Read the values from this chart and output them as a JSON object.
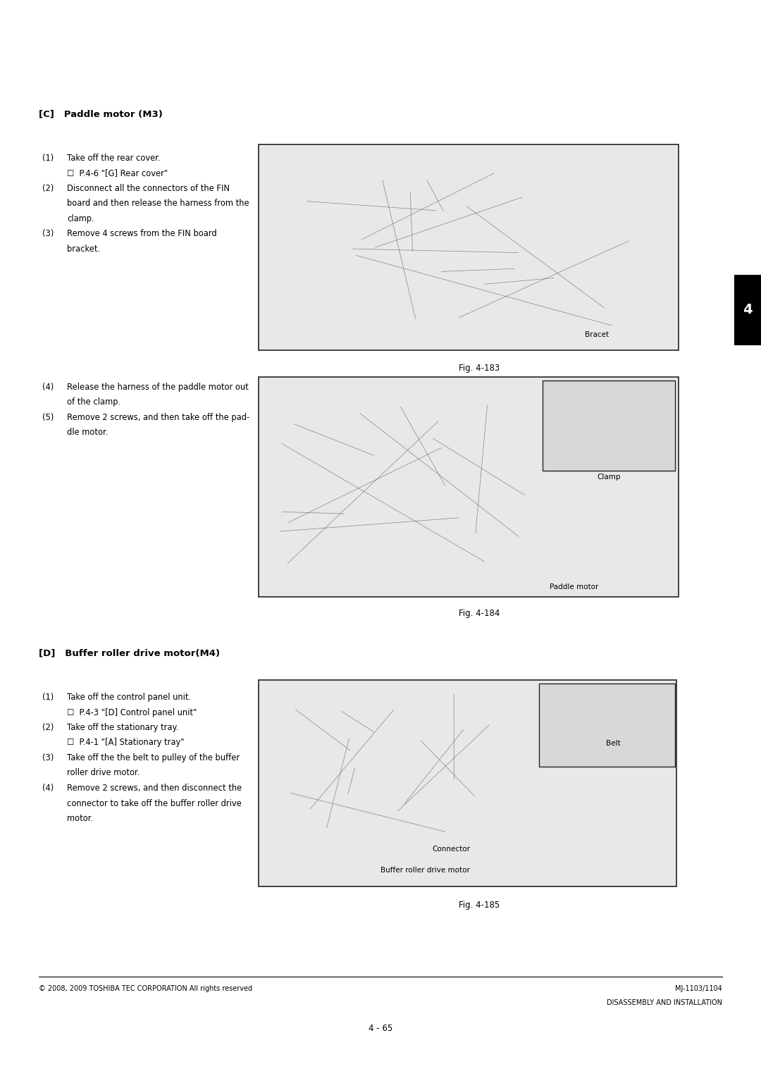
{
  "page_bg": "#ffffff",
  "page_width": 10.8,
  "page_height": 15.27,
  "section_c_title": "[C]   Paddle motor (M3)",
  "section_d_title": "[D]   Buffer roller drive motor(M4)",
  "tab_number": "4",
  "footer_left": "© 2008, 2009 TOSHIBA TEC CORPORATION All rights reserved",
  "footer_right_line1": "MJ-1103/1104",
  "footer_right_line2": "DISASSEMBLY AND INSTALLATION",
  "footer_page": "4 - 65",
  "fig183_label": "Fig. 4-183",
  "fig184_label": "Fig. 4-184",
  "fig185_label": "Fig. 4-185",
  "bracet_label": "Bracet",
  "clamp_label": "Clamp",
  "paddle_motor_label": "Paddle motor",
  "belt_label": "Belt",
  "connector_label": "Connector",
  "buffer_motor_label": "Buffer roller drive motor",
  "steps_c1": [
    [
      "(1)",
      "Take off the rear cover.",
      false
    ],
    [
      "",
      "☐  P.4-6 \"[G] Rear cover\"",
      true
    ],
    [
      "(2)",
      "Disconnect all the connectors of the FIN",
      false
    ],
    [
      "",
      "board and then release the harness from the",
      false
    ],
    [
      "",
      "clamp.",
      false
    ],
    [
      "(3)",
      "Remove 4 screws from the FIN board",
      false
    ],
    [
      "",
      "bracket.",
      false
    ]
  ],
  "steps_c2": [
    [
      "(4)",
      "Release the harness of the paddle motor out",
      false
    ],
    [
      "",
      "of the clamp.",
      false
    ],
    [
      "(5)",
      "Remove 2 screws, and then take off the pad-",
      false
    ],
    [
      "",
      "dle motor.",
      false
    ]
  ],
  "steps_d": [
    [
      "(1)",
      "Take off the control panel unit.",
      false
    ],
    [
      "",
      "☐  P.4-3 \"[D] Control panel unit\"",
      true
    ],
    [
      "(2)",
      "Take off the stationary tray.",
      false
    ],
    [
      "",
      "☐  P.4-1 \"[A] Stationary tray\"",
      true
    ],
    [
      "(3)",
      "Take off the the belt to pulley of the buffer",
      false
    ],
    [
      "",
      "roller drive motor.",
      false
    ],
    [
      "(4)",
      "Remove 2 screws, and then disconnect the",
      false
    ],
    [
      "",
      "connector to take off the buffer roller drive",
      false
    ],
    [
      "",
      "motor.",
      false
    ]
  ]
}
